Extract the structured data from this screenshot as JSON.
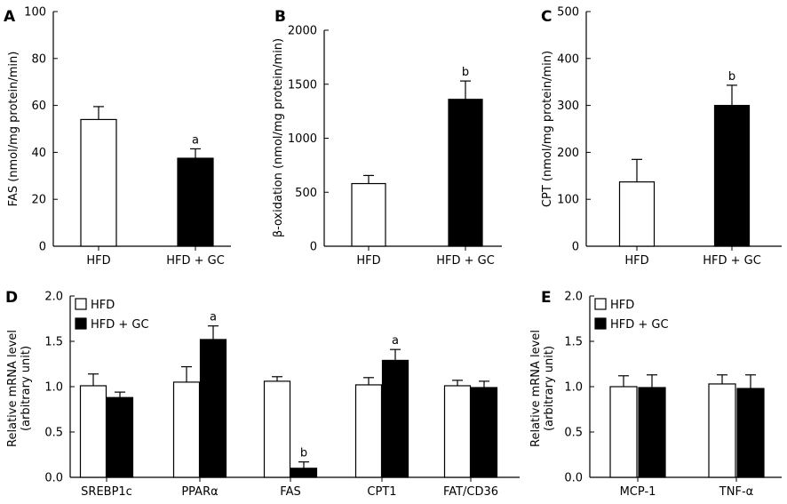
{
  "chart_data": [
    {
      "panel": "A",
      "type": "bar",
      "ylabel": "FAS (nmol/mg protein/min)",
      "ylim": [
        0,
        100
      ],
      "yticks": [
        0,
        20,
        40,
        60,
        80,
        100
      ],
      "categories": [
        "HFD",
        "HFD + GC"
      ],
      "series": [
        {
          "name": "HFD",
          "color": "#ffffff",
          "values": [
            54,
            null
          ],
          "errors": [
            5.5,
            null
          ],
          "labels": [
            "",
            ""
          ]
        },
        {
          "name": "HFD + GC",
          "color": "#000000",
          "values": [
            null,
            37.5
          ],
          "errors": [
            null,
            4
          ],
          "labels": [
            "",
            "a"
          ]
        }
      ]
    },
    {
      "panel": "B",
      "type": "bar",
      "ylabel": "β-oxidation (nmol/mg protein/min)",
      "ylim": [
        0,
        2000
      ],
      "yticks": [
        0,
        500,
        1000,
        1500,
        2000
      ],
      "categories": [
        "HFD",
        "HFD + GC"
      ],
      "series": [
        {
          "name": "HFD",
          "color": "#ffffff",
          "values": [
            580,
            null
          ],
          "errors": [
            75,
            null
          ],
          "labels": [
            "",
            ""
          ]
        },
        {
          "name": "HFD + GC",
          "color": "#000000",
          "values": [
            null,
            1360
          ],
          "errors": [
            null,
            170
          ],
          "labels": [
            "",
            "b"
          ]
        }
      ]
    },
    {
      "panel": "C",
      "type": "bar",
      "ylabel": "CPT (nmol/mg protein/min)",
      "ylim": [
        0,
        500
      ],
      "yticks": [
        0,
        100,
        200,
        300,
        400,
        500
      ],
      "categories": [
        "HFD",
        "HFD + GC"
      ],
      "series": [
        {
          "name": "HFD",
          "color": "#ffffff",
          "values": [
            137,
            null
          ],
          "errors": [
            48,
            null
          ],
          "labels": [
            "",
            ""
          ]
        },
        {
          "name": "HFD + GC",
          "color": "#000000",
          "values": [
            null,
            300
          ],
          "errors": [
            null,
            43
          ],
          "labels": [
            "",
            "b"
          ]
        }
      ]
    },
    {
      "panel": "D",
      "type": "bar",
      "ylabel": "Relative mRNA level",
      "ylabel2": "(arbitrary unit)",
      "ylim": [
        0,
        2.0
      ],
      "yticks": [
        "0.0",
        "0.5",
        "1.0",
        "1.5",
        "2.0"
      ],
      "categories": [
        "SREBP1c",
        "PPARα",
        "FAS",
        "CPT1",
        "FAT/CD36"
      ],
      "legend": {
        "position": "top-left",
        "entries": [
          "HFD",
          "HFD + GC"
        ]
      },
      "series": [
        {
          "name": "HFD",
          "color": "#ffffff",
          "values": [
            1.01,
            1.05,
            1.06,
            1.02,
            1.01
          ],
          "errors": [
            0.13,
            0.17,
            0.05,
            0.08,
            0.06
          ],
          "labels": [
            "",
            "",
            "",
            "",
            ""
          ]
        },
        {
          "name": "HFD + GC",
          "color": "#000000",
          "values": [
            0.88,
            1.52,
            0.1,
            1.29,
            0.99
          ],
          "errors": [
            0.06,
            0.15,
            0.07,
            0.12,
            0.07
          ],
          "labels": [
            "",
            "a",
            "b",
            "a",
            ""
          ]
        }
      ]
    },
    {
      "panel": "E",
      "type": "bar",
      "ylabel": "Relative mRNA level",
      "ylabel2": "(arbitrary unit)",
      "ylim": [
        0,
        2.0
      ],
      "yticks": [
        "0.0",
        "0.5",
        "1.0",
        "1.5",
        "2.0"
      ],
      "categories": [
        "MCP-1",
        "TNF-α"
      ],
      "legend": {
        "position": "top-left",
        "entries": [
          "HFD",
          "HFD + GC"
        ]
      },
      "series": [
        {
          "name": "HFD",
          "color": "#ffffff",
          "values": [
            1.0,
            1.03
          ],
          "errors": [
            0.12,
            0.1
          ],
          "labels": [
            "",
            ""
          ]
        },
        {
          "name": "HFD + GC",
          "color": "#000000",
          "values": [
            0.99,
            0.98
          ],
          "errors": [
            0.14,
            0.15
          ],
          "labels": [
            "",
            ""
          ]
        }
      ]
    }
  ]
}
